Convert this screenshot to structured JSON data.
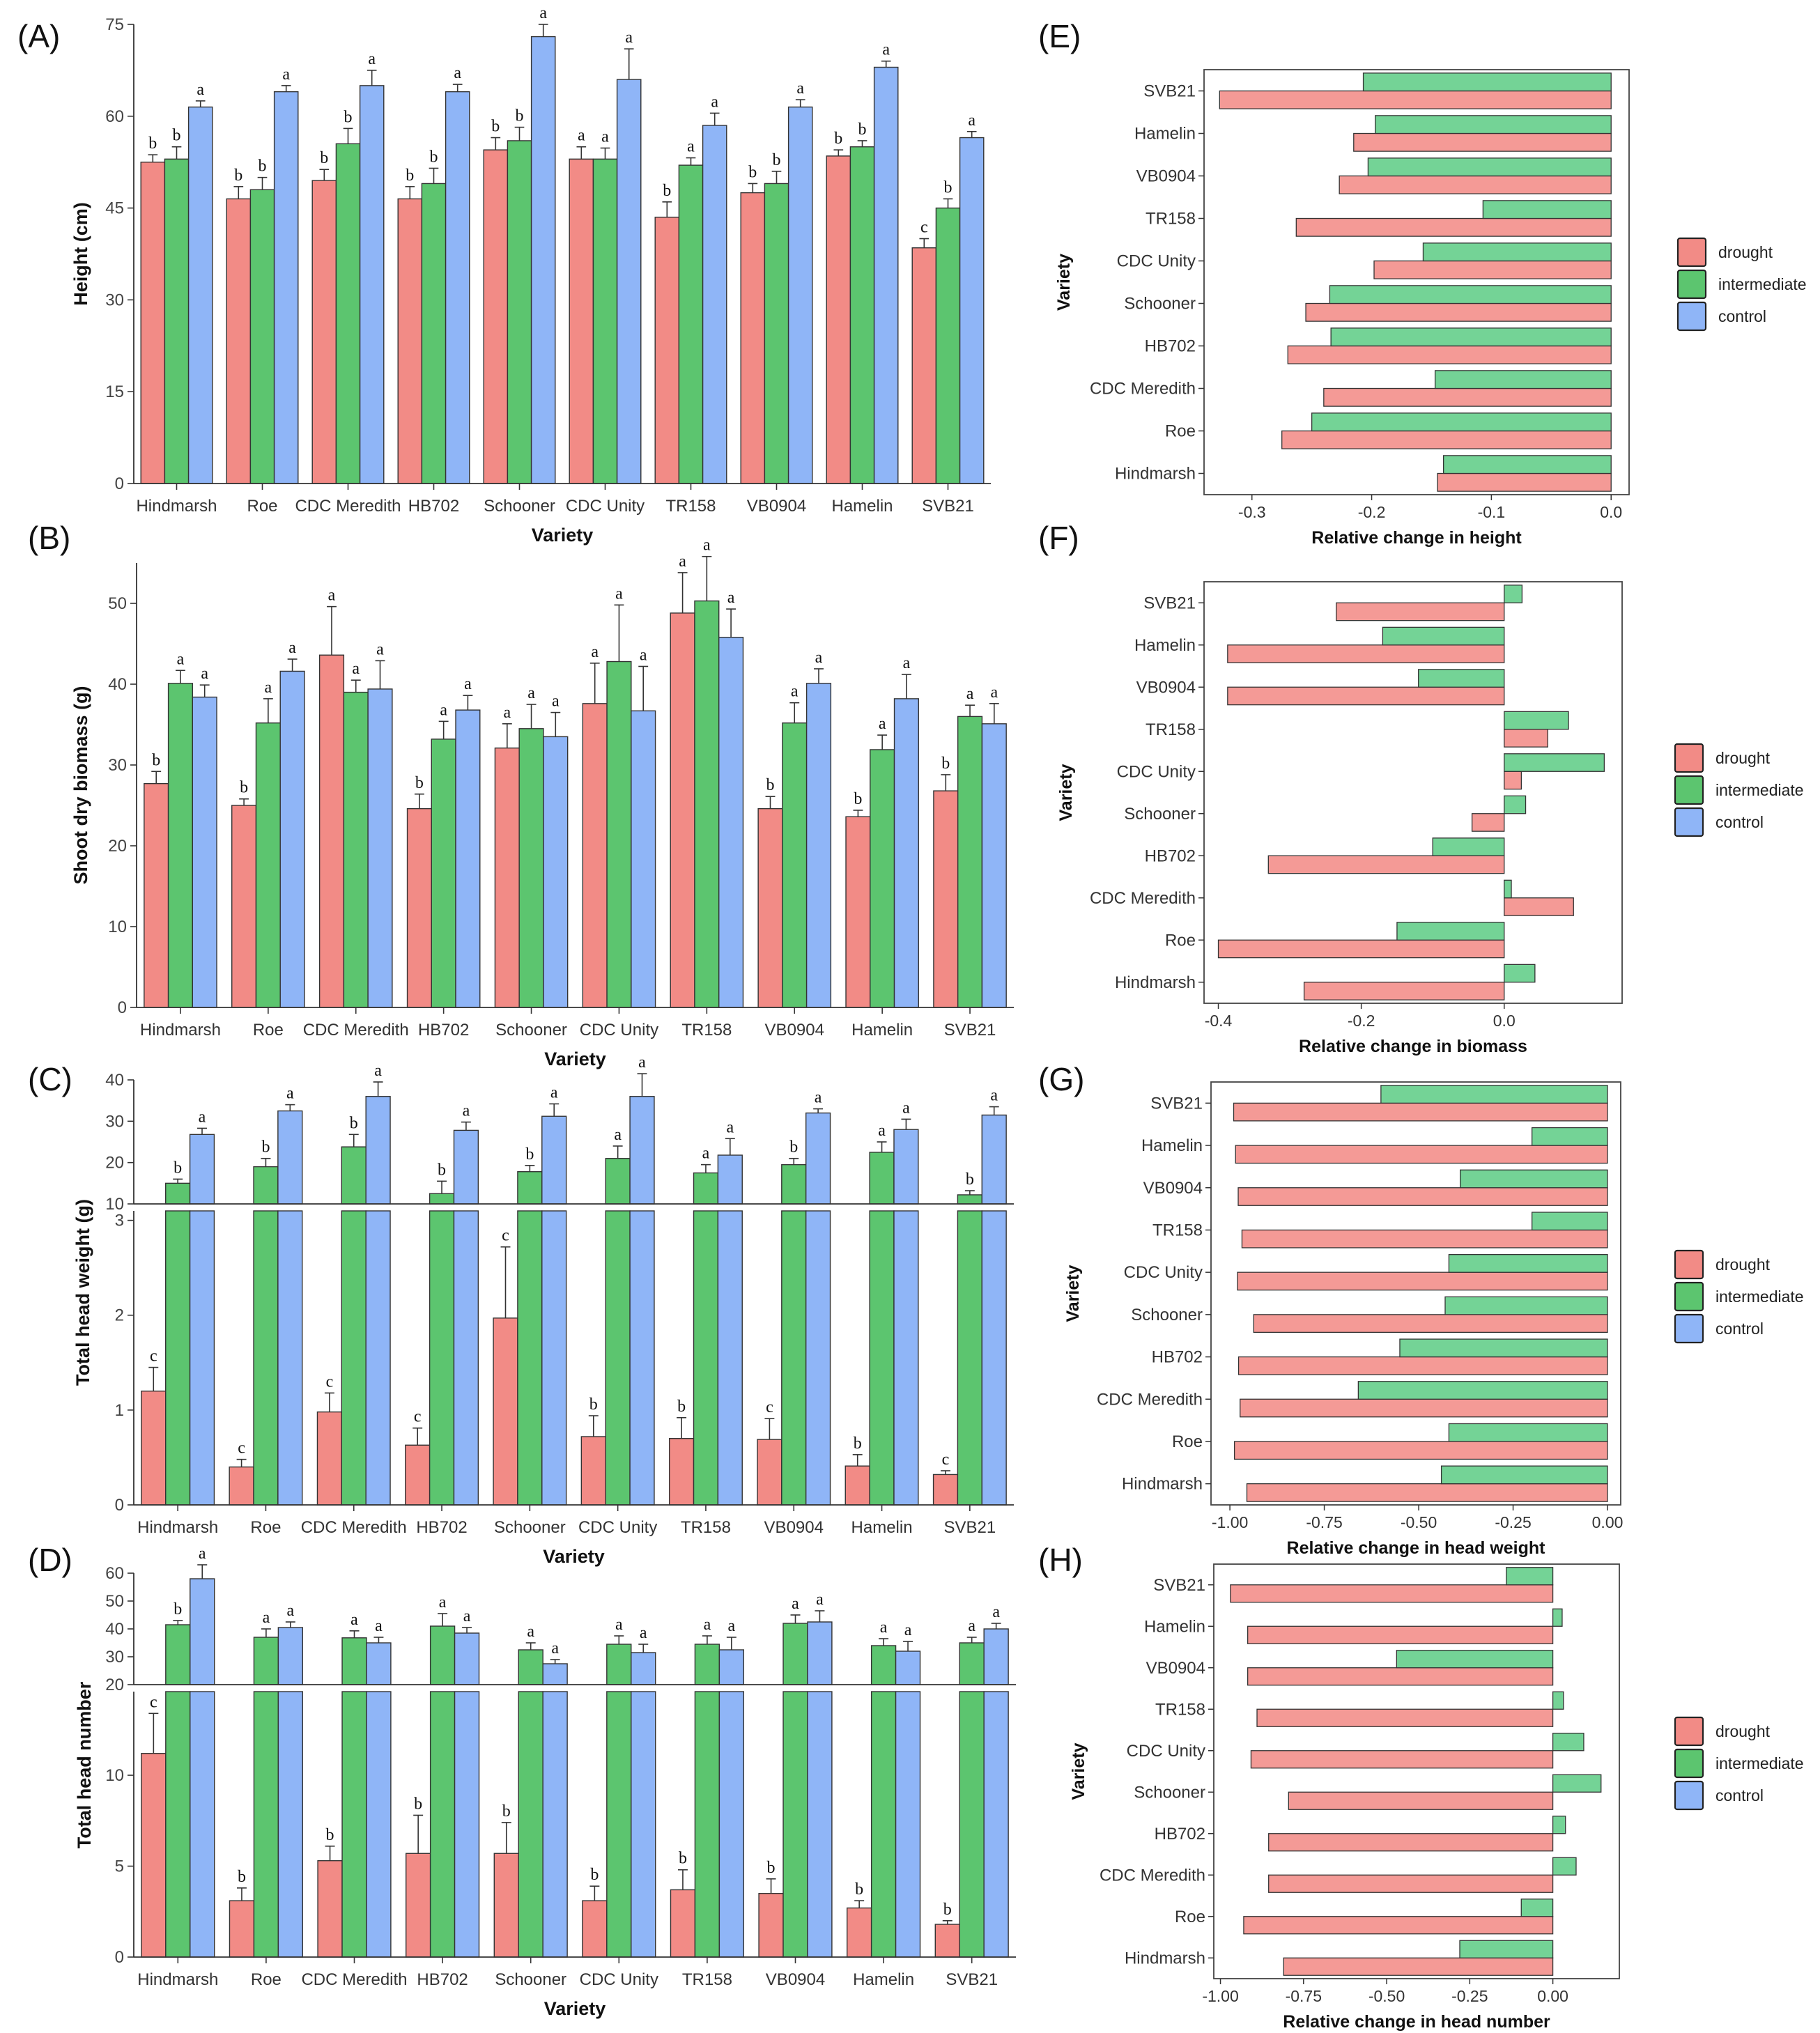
{
  "colors": {
    "drought": "#f28b86",
    "intermediate": "#5cc56f",
    "control": "#8fb5f7",
    "hdrought": "#f49a96",
    "hinter": "#74d396"
  },
  "chart_data": [
    {
      "id": "A",
      "panel_label": "(A)",
      "type": "bar",
      "xlabel": "Variety",
      "ylabel": "Height (cm)",
      "ylim": [
        0,
        75
      ],
      "yticks": [
        0,
        15,
        30,
        45,
        60,
        75
      ],
      "grid": false,
      "categories": [
        "Hindmarsh",
        "Roe",
        "CDC Meredith",
        "HB702",
        "Schooner",
        "CDC Unity",
        "TR158",
        "VB0904",
        "Hamelin",
        "SVB21"
      ],
      "series": [
        {
          "name": "drought",
          "values": [
            52.5,
            46.5,
            49.5,
            46.5,
            54.5,
            53,
            43.5,
            47.5,
            53.5,
            38.5
          ],
          "errors": [
            1.2,
            2,
            1.8,
            2,
            2,
            2,
            2.5,
            1.5,
            1,
            1.5
          ],
          "letters": [
            "b",
            "b",
            "b",
            "b",
            "b",
            "a",
            "b",
            "b",
            "b",
            "c"
          ]
        },
        {
          "name": "intermediate",
          "values": [
            53,
            48,
            55.5,
            49,
            56,
            53,
            52,
            49,
            55,
            45
          ],
          "errors": [
            2,
            2,
            2.5,
            2.5,
            2.2,
            1.8,
            1.2,
            2,
            1,
            1.5
          ],
          "letters": [
            "b",
            "b",
            "b",
            "b",
            "b",
            "a",
            "a",
            "b",
            "b",
            "b"
          ]
        },
        {
          "name": "control",
          "values": [
            61.5,
            64,
            65,
            64,
            73,
            66,
            58.5,
            61.5,
            68,
            56.5
          ],
          "errors": [
            1,
            1,
            2.5,
            1.2,
            2,
            5,
            2,
            1.2,
            1,
            1
          ],
          "letters": [
            "a",
            "a",
            "a",
            "a",
            "a",
            "a",
            "a",
            "a",
            "a",
            "a"
          ]
        }
      ]
    },
    {
      "id": "B",
      "panel_label": "(B)",
      "type": "bar",
      "xlabel": "Variety",
      "ylabel": "Shoot dry biomass (g)",
      "ylim": [
        0,
        55
      ],
      "yticks": [
        0,
        10,
        20,
        30,
        40,
        50
      ],
      "grid": false,
      "categories": [
        "Hindmarsh",
        "Roe",
        "CDC Meredith",
        "HB702",
        "Schooner",
        "CDC Unity",
        "TR158",
        "VB0904",
        "Hamelin",
        "SVB21"
      ],
      "series": [
        {
          "name": "drought",
          "values": [
            27.7,
            25,
            43.6,
            24.6,
            32.1,
            37.6,
            48.8,
            24.6,
            23.6,
            26.8
          ],
          "errors": [
            1.5,
            0.8,
            6,
            1.8,
            3,
            5,
            5,
            1.5,
            0.8,
            2
          ],
          "letters": [
            "b",
            "b",
            "a",
            "b",
            "a",
            "a",
            "a",
            "b",
            "b",
            "b"
          ]
        },
        {
          "name": "intermediate",
          "values": [
            40.1,
            35.2,
            39,
            33.2,
            34.5,
            42.8,
            50.3,
            35.2,
            31.9,
            36
          ],
          "errors": [
            1.6,
            3,
            1.5,
            2.2,
            3,
            7,
            5.5,
            2.5,
            1.8,
            1.4
          ],
          "letters": [
            "a",
            "a",
            "a",
            "a",
            "a",
            "a",
            "a",
            "a",
            "a",
            "a"
          ]
        },
        {
          "name": "control",
          "values": [
            38.4,
            41.6,
            39.4,
            36.8,
            33.5,
            36.7,
            45.8,
            40.1,
            38.2,
            35.1
          ],
          "errors": [
            1.5,
            1.5,
            3.5,
            1.8,
            3,
            5.5,
            3.5,
            1.8,
            3,
            2.5
          ],
          "letters": [
            "a",
            "a",
            "a",
            "a",
            "a",
            "a",
            "a",
            "a",
            "a",
            "a"
          ]
        }
      ]
    },
    {
      "id": "C",
      "panel_label": "(C)",
      "type": "bar",
      "broken_axis": true,
      "xlabel": "Variety",
      "ylabel": "Total head weight (g)",
      "ylim_lower": [
        0,
        3.1
      ],
      "ylim_upper": [
        10,
        40
      ],
      "yticks_lower": [
        0,
        1,
        2,
        3
      ],
      "yticks_upper": [
        10,
        20,
        30,
        40
      ],
      "grid": false,
      "categories": [
        "Hindmarsh",
        "Roe",
        "CDC Meredith",
        "HB702",
        "Schooner",
        "CDC Unity",
        "TR158",
        "VB0904",
        "Hamelin",
        "SVB21"
      ],
      "series": [
        {
          "name": "drought",
          "values": [
            1.2,
            0.4,
            0.98,
            0.63,
            1.97,
            0.72,
            0.7,
            0.69,
            0.41,
            0.32
          ],
          "errors": [
            0.25,
            0.08,
            0.2,
            0.18,
            0.75,
            0.22,
            0.22,
            0.22,
            0.12,
            0.04
          ],
          "letters": [
            "c",
            "c",
            "c",
            "c",
            "c",
            "b",
            "b",
            "c",
            "b",
            "c"
          ]
        },
        {
          "name": "intermediate",
          "values": [
            15,
            19,
            23.8,
            12.5,
            17.8,
            21,
            17.5,
            19.5,
            22.5,
            12.2
          ],
          "errors": [
            1,
            2,
            3,
            3,
            1.5,
            3,
            2,
            1.5,
            2.5,
            1
          ],
          "letters": [
            "b",
            "b",
            "b",
            "b",
            "b",
            "a",
            "a",
            "b",
            "a",
            "b"
          ]
        },
        {
          "name": "control",
          "values": [
            26.8,
            32.5,
            36,
            27.8,
            31.2,
            36,
            21.8,
            32,
            28,
            31.5
          ],
          "errors": [
            1.5,
            1.5,
            3.5,
            2,
            3,
            5.5,
            4,
            1,
            2.5,
            2
          ],
          "letters": [
            "a",
            "a",
            "a",
            "a",
            "a",
            "a",
            "a",
            "a",
            "a",
            "a"
          ]
        }
      ]
    },
    {
      "id": "D",
      "panel_label": "(D)",
      "type": "bar",
      "broken_axis": true,
      "xlabel": "Variety",
      "ylabel": "Total head number",
      "ylim_lower": [
        0,
        14.6
      ],
      "ylim_upper": [
        20,
        60
      ],
      "yticks_lower": [
        0,
        5,
        10
      ],
      "yticks_upper": [
        20,
        30,
        40,
        50,
        60
      ],
      "grid": false,
      "categories": [
        "Hindmarsh",
        "Roe",
        "CDC Meredith",
        "HB702",
        "Schooner",
        "CDC Unity",
        "TR158",
        "VB0904",
        "Hamelin",
        "SVB21"
      ],
      "series": [
        {
          "name": "drought",
          "values": [
            11.2,
            3.1,
            5.3,
            5.7,
            5.7,
            3.1,
            3.7,
            3.5,
            2.7,
            1.8
          ],
          "errors": [
            2.2,
            0.7,
            0.8,
            2.1,
            1.7,
            0.8,
            1.1,
            0.8,
            0.4,
            0.2
          ],
          "letters": [
            "c",
            "b",
            "b",
            "b",
            "b",
            "b",
            "b",
            "b",
            "b",
            "b"
          ]
        },
        {
          "name": "intermediate",
          "values": [
            41.5,
            37,
            36.8,
            41,
            32.5,
            34.5,
            34.5,
            42,
            34,
            35
          ],
          "errors": [
            1.5,
            3,
            2.5,
            4.5,
            2.5,
            3,
            3,
            3,
            2.5,
            2
          ],
          "letters": [
            "b",
            "a",
            "a",
            "a",
            "a",
            "a",
            "a",
            "a",
            "a",
            "a"
          ]
        },
        {
          "name": "control",
          "values": [
            58,
            40.5,
            35,
            38.5,
            27.5,
            31.5,
            32.5,
            42.5,
            32,
            40
          ],
          "errors": [
            5,
            2,
            2,
            2,
            1.5,
            3,
            4.5,
            4,
            3.5,
            2
          ],
          "letters": [
            "a",
            "a",
            "a",
            "a",
            "a",
            "a",
            "a",
            "a",
            "a",
            "a"
          ]
        }
      ]
    },
    {
      "id": "E",
      "panel_label": "(E)",
      "type": "bar",
      "orientation": "horizontal",
      "xlabel": "Relative change in height",
      "ylabel": "Variety",
      "xlim": [
        -0.34,
        0.015
      ],
      "xticks": [
        -0.3,
        -0.2,
        -0.1,
        0.0
      ],
      "xtick_labels": [
        "-0.3",
        "-0.2",
        "-0.1",
        "0.0"
      ],
      "grid": false,
      "categories": [
        "Hindmarsh",
        "Roe",
        "CDC Meredith",
        "HB702",
        "Schooner",
        "CDC Unity",
        "TR158",
        "VB0904",
        "Hamelin",
        "SVB21"
      ],
      "series": [
        {
          "name": "drought",
          "values": [
            -0.145,
            -0.275,
            -0.24,
            -0.27,
            -0.255,
            -0.198,
            -0.263,
            -0.227,
            -0.215,
            -0.327
          ]
        },
        {
          "name": "intermediate",
          "values": [
            -0.14,
            -0.25,
            -0.147,
            -0.234,
            -0.235,
            -0.157,
            -0.107,
            -0.203,
            -0.197,
            -0.207
          ]
        }
      ],
      "legend": {
        "title": "",
        "entries": [
          "drought",
          "intermediate",
          "control"
        ],
        "placement": "right"
      }
    },
    {
      "id": "F",
      "panel_label": "(F)",
      "type": "bar",
      "orientation": "horizontal",
      "xlabel": "Relative change in biomass",
      "ylabel": "Variety",
      "xlim": [
        -0.42,
        0.165
      ],
      "xticks": [
        -0.4,
        -0.2,
        0.0
      ],
      "xtick_labels": [
        "-0.4",
        "-0.2",
        "0.0"
      ],
      "grid": false,
      "categories": [
        "Hindmarsh",
        "Roe",
        "CDC Meredith",
        "HB702",
        "Schooner",
        "CDC Unity",
        "TR158",
        "VB0904",
        "Hamelin",
        "SVB21"
      ],
      "series": [
        {
          "name": "drought",
          "values": [
            -0.28,
            -0.4,
            0.097,
            -0.33,
            -0.045,
            0.024,
            0.061,
            -0.387,
            -0.387,
            -0.235
          ]
        },
        {
          "name": "intermediate",
          "values": [
            0.043,
            -0.15,
            0.01,
            -0.1,
            0.03,
            0.14,
            0.09,
            -0.12,
            -0.17,
            0.025
          ]
        }
      ],
      "legend": {
        "title": "",
        "entries": [
          "drought",
          "intermediate",
          "control"
        ],
        "placement": "right"
      }
    },
    {
      "id": "G",
      "panel_label": "(G)",
      "type": "bar",
      "orientation": "horizontal",
      "xlabel": "Relative change in head weight",
      "ylabel": "Variety",
      "xlim": [
        -1.05,
        0.035
      ],
      "xticks": [
        -1.0,
        -0.75,
        -0.5,
        -0.25,
        0.0
      ],
      "xtick_labels": [
        "-1.00",
        "-0.75",
        "-0.50",
        "-0.25",
        "0.00"
      ],
      "grid": false,
      "categories": [
        "Hindmarsh",
        "Roe",
        "CDC Meredith",
        "HB702",
        "Schooner",
        "CDC Unity",
        "TR158",
        "VB0904",
        "Hamelin",
        "SVB21"
      ],
      "series": [
        {
          "name": "drought",
          "values": [
            -0.955,
            -0.988,
            -0.973,
            -0.977,
            -0.937,
            -0.98,
            -0.968,
            -0.978,
            -0.985,
            -0.99
          ]
        },
        {
          "name": "intermediate",
          "values": [
            -0.44,
            -0.42,
            -0.66,
            -0.55,
            -0.43,
            -0.42,
            -0.2,
            -0.39,
            -0.2,
            -0.6
          ]
        }
      ],
      "legend": {
        "title": "",
        "entries": [
          "drought",
          "intermediate",
          "control"
        ],
        "placement": "right"
      }
    },
    {
      "id": "H",
      "panel_label": "(H)",
      "type": "bar",
      "orientation": "horizontal",
      "xlabel": "Relative change in head number",
      "ylabel": "Variety",
      "xlim": [
        -1.02,
        0.2
      ],
      "xticks": [
        -1.0,
        -0.75,
        -0.5,
        -0.25,
        0.0
      ],
      "xtick_labels": [
        "-1.00",
        "-0.75",
        "-0.50",
        "-0.25",
        "0.00"
      ],
      "grid": false,
      "categories": [
        "Hindmarsh",
        "Roe",
        "CDC Meredith",
        "HB702",
        "Schooner",
        "CDC Unity",
        "TR158",
        "VB0904",
        "Hamelin",
        "SVB21"
      ],
      "series": [
        {
          "name": "drought",
          "values": [
            -0.81,
            -0.93,
            -0.855,
            -0.855,
            -0.795,
            -0.908,
            -0.89,
            -0.918,
            -0.918,
            -0.97
          ]
        },
        {
          "name": "intermediate",
          "values": [
            -0.28,
            -0.095,
            0.07,
            0.038,
            0.145,
            0.093,
            0.032,
            -0.47,
            0.028,
            -0.14
          ]
        }
      ],
      "legend": {
        "title": "",
        "entries": [
          "drought",
          "intermediate",
          "control"
        ],
        "placement": "right"
      }
    }
  ]
}
